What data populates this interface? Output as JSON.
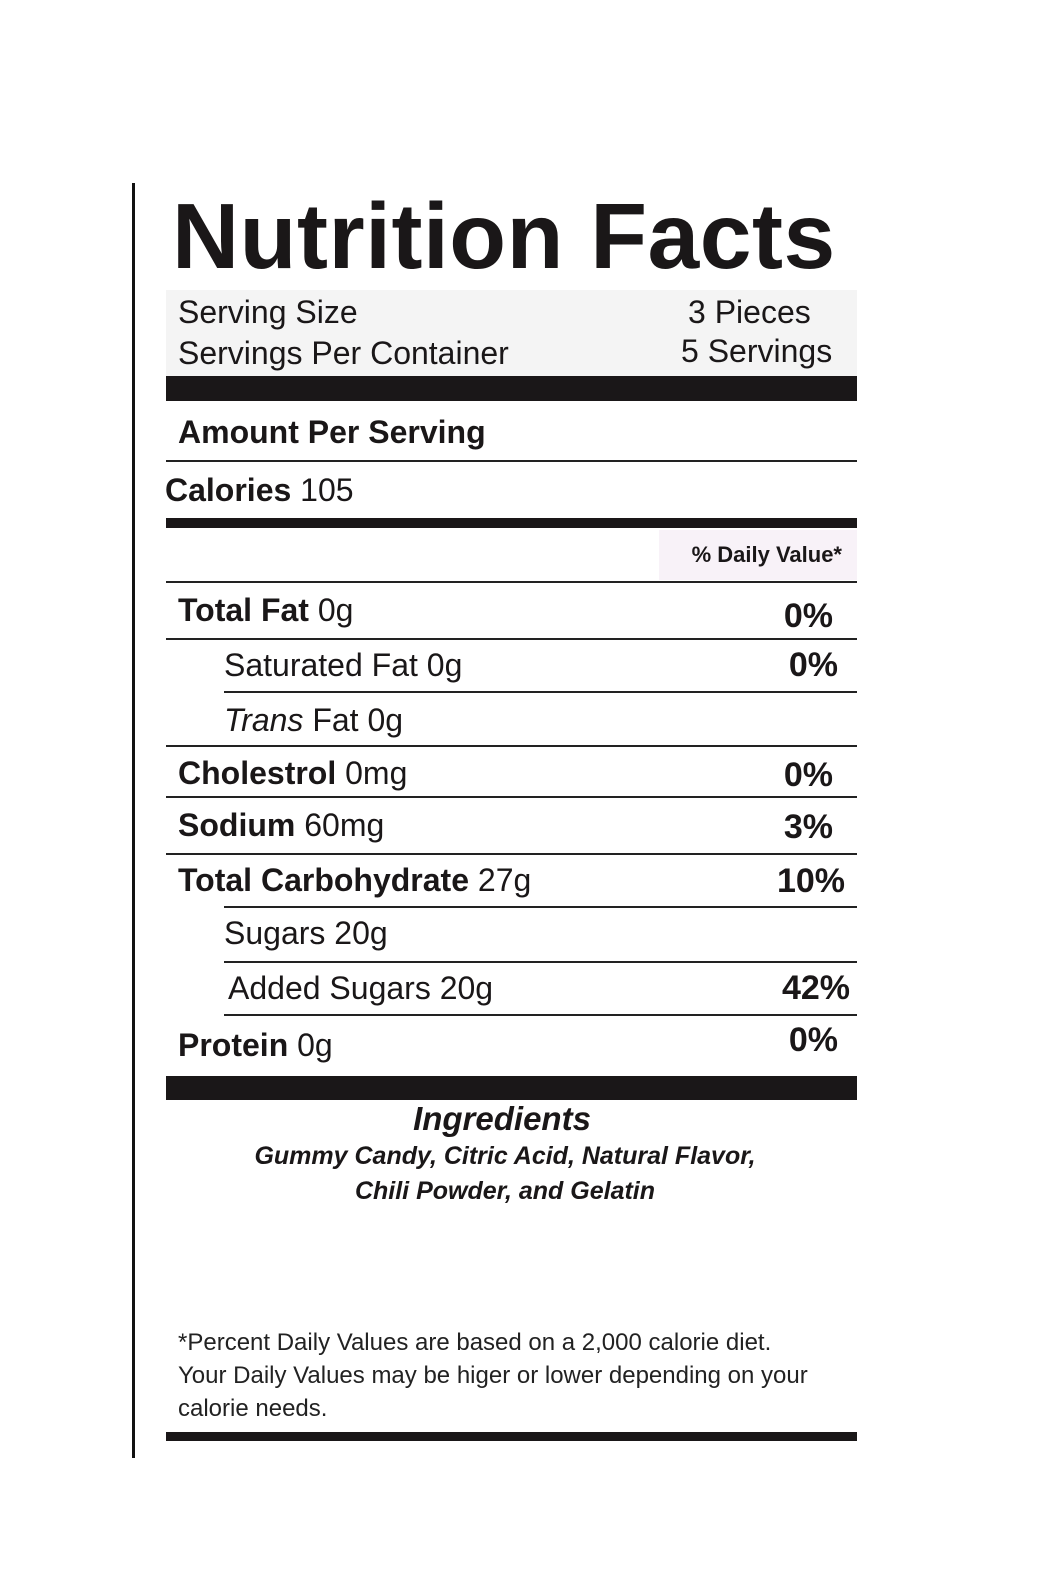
{
  "title": "Nutrition Facts",
  "serving": {
    "size_label": "Serving Size",
    "size_value": "3 Pieces",
    "per_container_label": "Servings Per Container",
    "per_container_value": "5 Servings"
  },
  "amount_per_serving": "Amount Per Serving",
  "calories": {
    "label": "Calories",
    "value": "105"
  },
  "daily_value_header": "% Daily Value*",
  "nutrients": [
    {
      "label": "Total Fat",
      "amount": "0g",
      "dv": "0%"
    },
    {
      "label": "Saturated Fat",
      "amount": "0g",
      "dv": "0%"
    },
    {
      "label": "Trans",
      "label_rest": "Fat",
      "amount": "0g",
      "dv": ""
    },
    {
      "label": "Cholestrol",
      "amount": "0mg",
      "dv": "0%"
    },
    {
      "label": "Sodium",
      "amount": "60mg",
      "dv": "3%"
    },
    {
      "label": "Total Carbohydrate",
      "amount": "27g",
      "dv": "10%"
    },
    {
      "label": "Sugars",
      "amount": "20g",
      "dv": ""
    },
    {
      "label": "Added Sugars",
      "amount": "20g",
      "dv": "42%"
    },
    {
      "label": "Protein",
      "amount": "0g",
      "dv": "0%"
    }
  ],
  "ingredients": {
    "title": "Ingredients",
    "line1": "Gummy Candy, Citric Acid, Natural Flavor,",
    "line2": "Chili Powder, and Gelatin"
  },
  "footnote": {
    "line1": "*Percent Daily Values are based on a 2,000 calorie diet.",
    "line2": "Your Daily Values may be higer or lower depending on your",
    "line3": "calorie needs."
  }
}
